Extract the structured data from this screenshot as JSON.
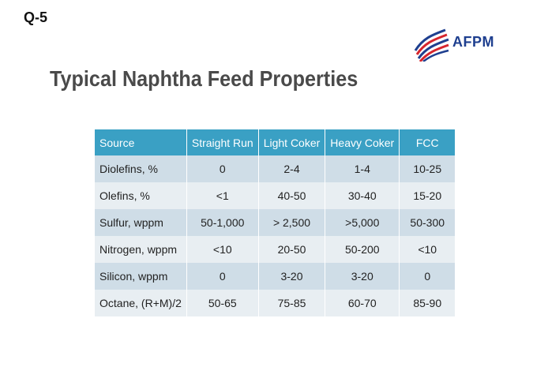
{
  "slide_label": "Q-5",
  "logo": {
    "text": "AFPM",
    "icon": "afpm-flag-stripes-icon"
  },
  "title": "Typical Naphtha Feed Properties",
  "table": {
    "headers": [
      "Source",
      "Straight Run",
      "Light Coker",
      "Heavy Coker",
      "FCC"
    ],
    "rows": [
      [
        "Diolefins, %",
        "0",
        "2-4",
        "1-4",
        "10-25"
      ],
      [
        "Olefins, %",
        "<1",
        "40-50",
        "30-40",
        "15-20"
      ],
      [
        "Sulfur, wppm",
        "50-1,000",
        "> 2,500",
        ">5,000",
        "50-300"
      ],
      [
        "Nitrogen, wppm",
        "<10",
        "20-50",
        "50-200",
        "<10"
      ],
      [
        "Silicon, wppm",
        "0",
        "3-20",
        "3-20",
        "0"
      ],
      [
        "Octane, (R+M)/2",
        "50-65",
        "75-85",
        "60-70",
        "85-90"
      ]
    ]
  },
  "colors": {
    "header_bg": "#3aa0c4",
    "row_dark": "#cfdde7",
    "row_light": "#e8eef2",
    "logo_blue": "#1e3f8f",
    "logo_red": "#d6262e"
  }
}
